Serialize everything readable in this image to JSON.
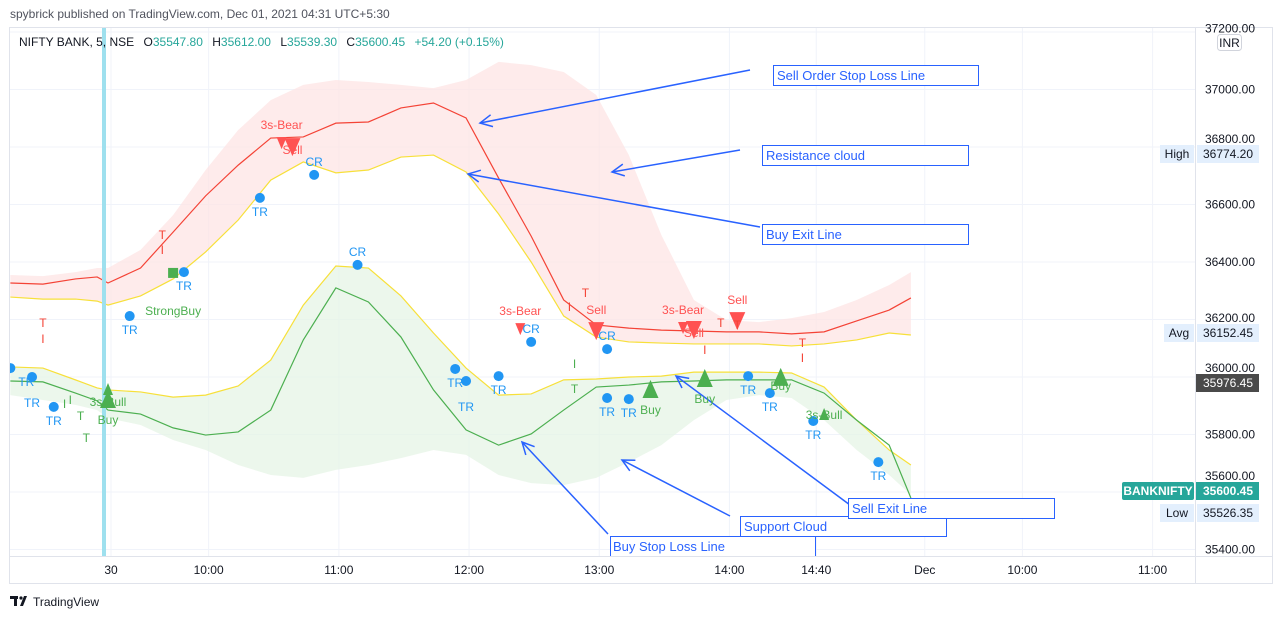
{
  "header": {
    "published": "spybrick published on TradingView.com, Dec 01, 2021 04:31 UTC+5:30"
  },
  "legend": {
    "symbol": "NIFTY BANK, 5, NSE",
    "o_label": "O",
    "o": "35547.80",
    "h_label": "H",
    "h": "35612.00",
    "l_label": "L",
    "l": "35539.30",
    "c_label": "C",
    "c": "35600.45",
    "change": "+54.20 (+0.15%)"
  },
  "price_axis": {
    "currency": "INR"
  },
  "badges": {
    "high_label": "High",
    "high": "36774.20",
    "avg_label": "Avg",
    "avg": "36152.45",
    "crosshair": "35976.45",
    "symbol": "BANKNIFTY",
    "last": "35600.45",
    "low_label": "Low",
    "low": "35526.35"
  },
  "annotations": [
    "Sell Order Stop Loss Line",
    "Resistance cloud",
    "Buy Exit Line",
    "Support Cloud",
    "Sell Exit Line",
    "Buy Stop Loss Line"
  ],
  "footer": {
    "brand": "TradingView"
  },
  "colors": {
    "up": "#26a69a",
    "sell": "#f44336",
    "buy": "#4caf50",
    "yellow": "#ffeb3b",
    "dot": "#2196f3",
    "annotation": "#2962ff",
    "session": "#9ee0ee"
  },
  "chart_data": {
    "type": "line",
    "ylim": [
      35370,
      37220
    ],
    "y_ticks": [
      37200,
      37000,
      36800,
      36600,
      36400,
      36200,
      36000,
      35800,
      35600,
      35400
    ],
    "y_tick_labels": [
      "37200.00",
      "37000.00",
      "36800.00",
      "36600.00",
      "36400.00",
      "36200.00",
      "36000.00",
      "35800.00",
      "35600.00",
      "35400.00"
    ],
    "x_ticks": [
      {
        "label": "30",
        "time": "2021-11-30 09:15"
      },
      {
        "label": "10:00",
        "time": "2021-11-30 10:00"
      },
      {
        "label": "11:00",
        "time": "2021-11-30 11:00"
      },
      {
        "label": "12:00",
        "time": "2021-11-30 12:00"
      },
      {
        "label": "13:00",
        "time": "2021-11-30 13:00"
      },
      {
        "label": "14:00",
        "time": "2021-11-30 14:00"
      },
      {
        "label": "14:40",
        "time": "2021-11-30 14:40"
      },
      {
        "label": "Dec",
        "time": "2021-12-01 09:15"
      },
      {
        "label": "10:00",
        "time": "2021-12-01 10:00"
      },
      {
        "label": "11:00",
        "time": "2021-12-01 11:00"
      }
    ],
    "session_break": "2021-11-30 09:15",
    "grid": true,
    "x": [
      "2021-11-29 14:45",
      "2021-11-29 15:00",
      "2021-11-29 15:15",
      "2021-11-29 15:25",
      "2021-11-30 09:15",
      "2021-11-30 09:30",
      "2021-11-30 09:45",
      "2021-11-30 10:00",
      "2021-11-30 10:15",
      "2021-11-30 10:30",
      "2021-11-30 10:45",
      "2021-11-30 11:00",
      "2021-11-30 11:15",
      "2021-11-30 11:30",
      "2021-11-30 11:45",
      "2021-11-30 12:00",
      "2021-11-30 12:15",
      "2021-11-30 12:30",
      "2021-11-30 12:45",
      "2021-11-30 13:00",
      "2021-11-30 13:15",
      "2021-11-30 13:30",
      "2021-11-30 13:45",
      "2021-11-30 14:00",
      "2021-11-30 14:15",
      "2021-11-30 14:30",
      "2021-11-30 14:45",
      "2021-11-30 15:00",
      "2021-11-30 15:15",
      "2021-11-30 15:25"
    ],
    "clouds": [
      {
        "color": "#fde4e4",
        "top": [
          36355,
          36351,
          36365,
          36379,
          36379,
          36442,
          36563,
          36720,
          36859,
          36963,
          37016,
          37033,
          37026,
          37016,
          37005,
          37033,
          37096,
          37085,
          37061,
          36981,
          36772,
          36494,
          36268,
          36198,
          36191,
          36205,
          36226,
          36268,
          36320,
          36365
        ],
        "bottom": [
          36278,
          36271,
          36271,
          36264,
          36250,
          36282,
          36341,
          36435,
          36546,
          36685,
          36748,
          36710,
          36720,
          36765,
          36772,
          36713,
          36567,
          36400,
          36212,
          36139,
          36122,
          36118,
          36115,
          36115,
          36115,
          36108,
          36115,
          36129,
          36153,
          36146
        ]
      },
      {
        "color": "#e6f4e6",
        "top": [
          36035,
          36031,
          35990,
          35962,
          35955,
          35948,
          35930,
          35937,
          35969,
          36059,
          36250,
          36386,
          36379,
          36282,
          36153,
          36031,
          35937,
          35941,
          35990,
          35993,
          36000,
          36003,
          36017,
          36017,
          36017,
          36014,
          35965,
          35850,
          35746,
          35694
        ],
        "bottom": [
          35937,
          35920,
          35903,
          35885,
          35857,
          35833,
          35781,
          35746,
          35694,
          35659,
          35649,
          35677,
          35694,
          35718,
          35746,
          35729,
          35659,
          35631,
          35624,
          35649,
          35704,
          35763,
          35850,
          35920,
          35937,
          35927,
          35850,
          35746,
          35659,
          35590
        ]
      }
    ],
    "series": [
      {
        "color": "#f44336",
        "values": [
          36327,
          36323,
          36341,
          36348,
          36327,
          36379,
          36504,
          36630,
          36737,
          36831,
          36835,
          36883,
          36887,
          36936,
          36953,
          36901,
          36692,
          36490,
          36268,
          36181,
          36170,
          36163,
          36160,
          36157,
          36157,
          36150,
          36157,
          36195,
          36233,
          36275
        ]
      },
      {
        "color": "#f7e03a",
        "values": [
          36278,
          36271,
          36271,
          36264,
          36250,
          36282,
          36341,
          36435,
          36546,
          36685,
          36748,
          36710,
          36720,
          36765,
          36772,
          36713,
          36567,
          36400,
          36212,
          36139,
          36122,
          36118,
          36115,
          36115,
          36115,
          36108,
          36115,
          36129,
          36153,
          36146
        ]
      },
      {
        "color": "#f7e03a",
        "values": [
          36035,
          36031,
          35990,
          35962,
          35955,
          35948,
          35930,
          35937,
          35969,
          36059,
          36250,
          36386,
          36379,
          36282,
          36153,
          36031,
          35937,
          35941,
          35990,
          35993,
          36000,
          36003,
          36017,
          36017,
          36017,
          36014,
          35965,
          35850,
          35746,
          35694
        ]
      },
      {
        "color": "#4caf50",
        "values": [
          35986,
          35983,
          35944,
          35917,
          35885,
          35871,
          35823,
          35798,
          35809,
          35885,
          36129,
          36310,
          36261,
          36139,
          35955,
          35816,
          35763,
          35802,
          35885,
          35965,
          35972,
          35983,
          35986,
          35990,
          35990,
          35990,
          35944,
          35850,
          35763,
          35579
        ]
      }
    ],
    "markers": [
      {
        "type": "dot",
        "time": "2021-11-29 14:45",
        "price": 36031,
        "label": "TR"
      },
      {
        "type": "dot",
        "time": "2021-11-29 14:55",
        "price": 36000,
        "label": "TR"
      },
      {
        "type": "dot",
        "time": "2021-11-29 15:05",
        "price": 35896,
        "label": "TR"
      },
      {
        "type": "dot",
        "time": "2021-11-30 09:25",
        "price": 36212,
        "label": "TR"
      },
      {
        "type": "dot",
        "time": "2021-11-30 09:50",
        "price": 36365,
        "label": "TR"
      },
      {
        "type": "dot",
        "time": "2021-11-30 10:25",
        "price": 36623,
        "label": "TR"
      },
      {
        "type": "dot",
        "time": "2021-11-30 10:50",
        "price": 36703,
        "label": "CR"
      },
      {
        "type": "dot",
        "time": "2021-11-30 11:10",
        "price": 36390,
        "label": "CR"
      },
      {
        "type": "dot",
        "time": "2021-11-30 11:55",
        "price": 36028,
        "label": "TR"
      },
      {
        "type": "dot",
        "time": "2021-11-30 12:00",
        "price": 35986,
        "label": "TR"
      },
      {
        "type": "dot",
        "time": "2021-11-30 12:15",
        "price": 36003,
        "label": "TR"
      },
      {
        "type": "dot",
        "time": "2021-11-30 12:30",
        "price": 36122,
        "label": "CR"
      },
      {
        "type": "dot",
        "time": "2021-11-30 13:05",
        "price": 36097,
        "label": "CR"
      },
      {
        "type": "dot",
        "time": "2021-11-30 13:05",
        "price": 35927,
        "label": "TR"
      },
      {
        "type": "dot",
        "time": "2021-11-30 13:15",
        "price": 35923,
        "label": "TR"
      },
      {
        "type": "dot",
        "time": "2021-11-30 14:10",
        "price": 36003,
        "label": "TR"
      },
      {
        "type": "dot",
        "time": "2021-11-30 14:20",
        "price": 35944,
        "label": "TR"
      },
      {
        "type": "dot",
        "time": "2021-11-30 14:40",
        "price": 35847,
        "label": "TR"
      },
      {
        "type": "dot",
        "time": "2021-11-30 15:10",
        "price": 35704,
        "label": "TR"
      },
      {
        "type": "sell",
        "size": "small",
        "time": "2021-11-30 10:35",
        "price": 36817,
        "label": "3s-Bear"
      },
      {
        "type": "sell",
        "size": "big",
        "time": "2021-11-30 10:40",
        "price": 36803,
        "label": "Sell"
      },
      {
        "type": "sell",
        "size": "small",
        "time": "2021-11-30 12:25",
        "price": 36170,
        "label": "3s-Bear"
      },
      {
        "type": "sell",
        "size": "big",
        "time": "2021-11-30 13:00",
        "price": 36163,
        "label": "Sell"
      },
      {
        "type": "sell",
        "size": "small",
        "time": "2021-11-30 13:40",
        "price": 36174,
        "label": "3s-Bear"
      },
      {
        "type": "sell",
        "size": "big",
        "time": "2021-11-30 13:45",
        "price": 36167,
        "label": "Sell"
      },
      {
        "type": "sell",
        "size": "big",
        "time": "2021-11-30 14:05",
        "price": 36198,
        "label": "Sell"
      },
      {
        "type": "buy",
        "size": "small",
        "time": "2021-11-30 09:15",
        "price": 35955,
        "label": "3s-Bull"
      },
      {
        "type": "buy",
        "size": "big",
        "time": "2021-11-30 09:15",
        "price": 35920,
        "label": "Buy"
      },
      {
        "type": "buy",
        "size": "big",
        "time": "2021-11-30 13:25",
        "price": 35955,
        "label": "Buy"
      },
      {
        "type": "buy",
        "size": "big",
        "time": "2021-11-30 13:50",
        "price": 35993,
        "label": "Buy"
      },
      {
        "type": "buy",
        "size": "big",
        "time": "2021-11-30 14:25",
        "price": 35997,
        "label": "Buy"
      },
      {
        "type": "buy",
        "size": "small",
        "time": "2021-11-30 14:45",
        "price": 35868,
        "label": "3s-Bull"
      },
      {
        "type": "square",
        "time": "2021-11-30 09:45",
        "price": 36362,
        "label": "StrongBuy"
      },
      {
        "type": "letter",
        "color": "#f44336",
        "time": "2021-11-29 15:00",
        "price": 36188,
        "label": "T"
      },
      {
        "type": "letter",
        "color": "#f44336",
        "time": "2021-11-29 15:00",
        "price": 36132,
        "label": "I"
      },
      {
        "type": "letter",
        "color": "#f44336",
        "time": "2021-11-30 09:40",
        "price": 36494,
        "label": "T"
      },
      {
        "type": "letter",
        "color": "#f44336",
        "time": "2021-11-30 09:40",
        "price": 36442,
        "label": "I"
      },
      {
        "type": "letter",
        "color": "#f44336",
        "time": "2021-11-30 12:55",
        "price": 36292,
        "label": "T"
      },
      {
        "type": "letter",
        "color": "#f44336",
        "time": "2021-11-30 12:55",
        "price": 36243,
        "label": "I"
      },
      {
        "type": "letter",
        "color": "#f44336",
        "time": "2021-11-30 13:50",
        "price": 36188,
        "label": "T"
      },
      {
        "type": "letter",
        "color": "#f44336",
        "time": "2021-11-30 13:50",
        "price": 36136,
        "label": "I"
      },
      {
        "type": "letter",
        "color": "#f44336",
        "time": "2021-11-30 14:05",
        "price": 36223,
        "label": "T"
      },
      {
        "type": "letter",
        "color": "#f44336",
        "time": "2021-11-30 14:35",
        "price": 36118,
        "label": "T"
      },
      {
        "type": "letter",
        "color": "#f44336",
        "time": "2021-11-30 14:35",
        "price": 36066,
        "label": "I"
      },
      {
        "type": "letter",
        "color": "#4caf50",
        "time": "2021-11-29 15:10",
        "price": 35906,
        "label": "I"
      },
      {
        "type": "letter",
        "color": "#4caf50",
        "time": "2021-11-29 15:10",
        "price": 35864,
        "label": "T"
      },
      {
        "type": "letter",
        "color": "#4caf50",
        "time": "2021-11-29 15:20",
        "price": 35920,
        "label": "I"
      },
      {
        "type": "letter",
        "color": "#4caf50",
        "time": "2021-11-29 15:20",
        "price": 35871,
        "label": "T"
      },
      {
        "type": "letter",
        "color": "#4caf50",
        "time": "2021-11-30 12:50",
        "price": 36045,
        "label": "I"
      },
      {
        "type": "letter",
        "color": "#4caf50",
        "time": "2021-11-30 12:50",
        "price": 36000,
        "label": "T"
      }
    ]
  }
}
